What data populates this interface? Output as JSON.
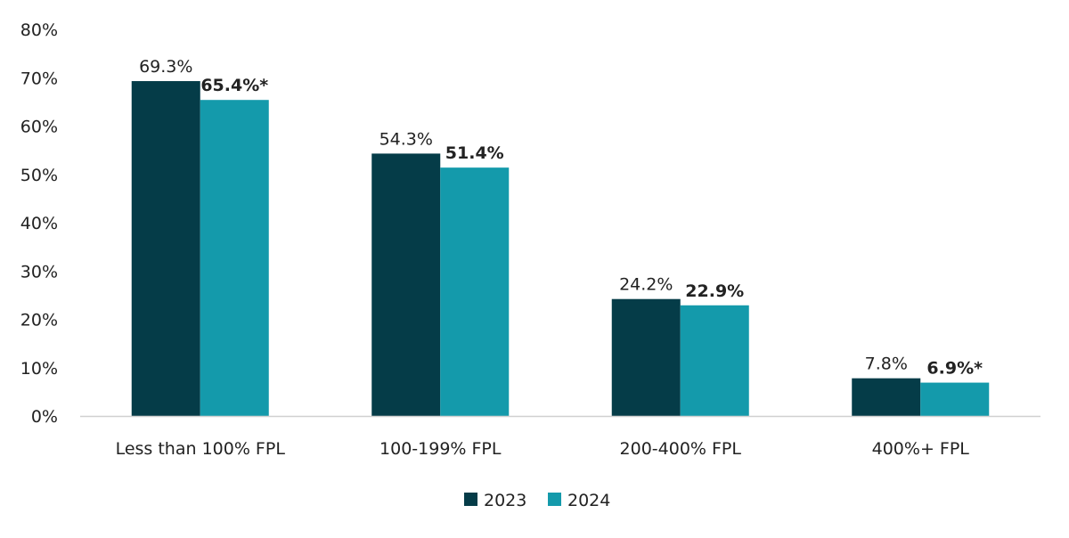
{
  "chart_data": {
    "type": "bar",
    "title": "",
    "xlabel": "",
    "ylabel": "",
    "ylim": [
      0,
      80
    ],
    "yticks": [
      "0%",
      "10%",
      "20%",
      "30%",
      "40%",
      "50%",
      "60%",
      "70%",
      "80%"
    ],
    "grid": false,
    "legend_placement": "bottom",
    "categories": [
      "Less than 100% FPL",
      "100-199% FPL",
      "200-400% FPL",
      "400%+ FPL"
    ],
    "series": [
      {
        "name": "2023",
        "color": "#053c48",
        "values": [
          69.3,
          54.3,
          24.2,
          7.8
        ],
        "labels": [
          "69.3%",
          "54.3%",
          "24.2%",
          "7.8%"
        ],
        "label_bold": false
      },
      {
        "name": "2024",
        "color": "#149aab",
        "values": [
          65.4,
          51.4,
          22.9,
          6.9
        ],
        "labels": [
          "65.4%*",
          "51.4%",
          "22.9%",
          "6.9%*"
        ],
        "label_bold": true
      }
    ]
  }
}
